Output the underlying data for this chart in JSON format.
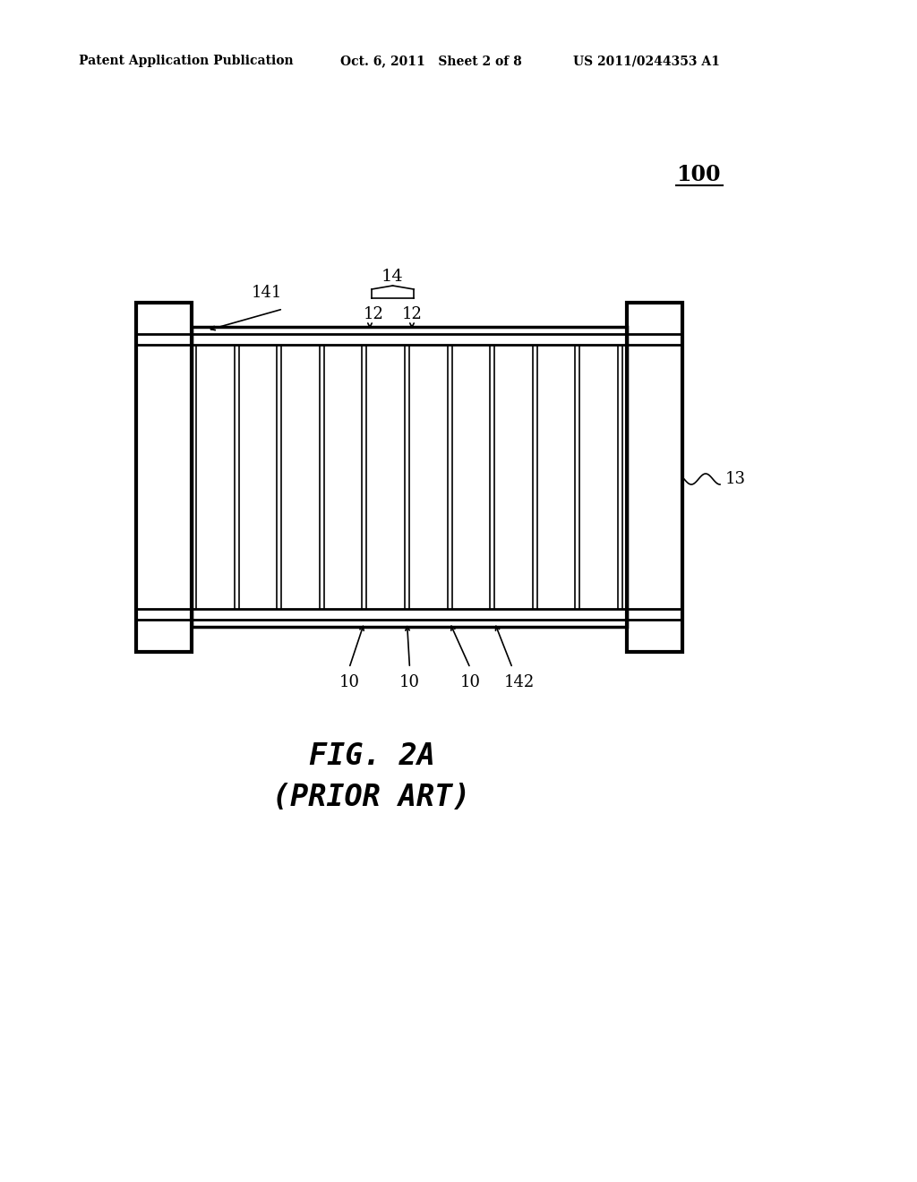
{
  "bg_color": "#ffffff",
  "line_color": "#000000",
  "header_left": "Patent Application Publication",
  "header_mid": "Oct. 6, 2011   Sheet 2 of 8",
  "header_right": "US 2011/0244353 A1",
  "figure_label": "FIG. 2A",
  "figure_sublabel": "(PRIOR ART)",
  "label_100": "100",
  "label_14": "14",
  "label_12a": "12",
  "label_12b": "12",
  "label_141": "141",
  "label_13": "13",
  "label_10a": "10",
  "label_10b": "10",
  "label_10c": "10",
  "label_142": "142",
  "lw_thin": 1.2,
  "lw_med": 2.0,
  "lw_thick": 2.5,
  "lw_plate": 3.0
}
